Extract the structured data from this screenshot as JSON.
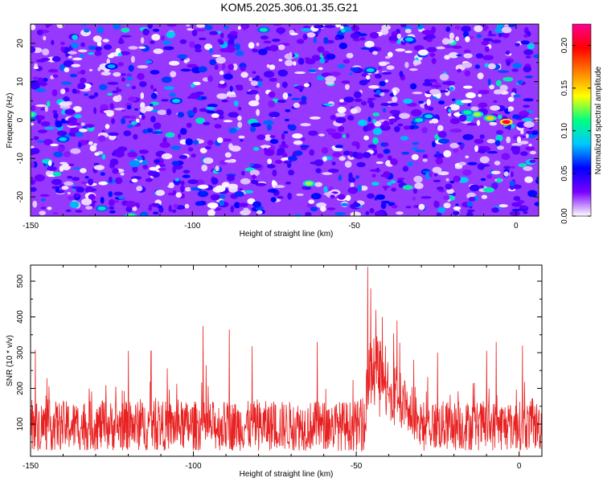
{
  "title": "KOM5.2025.306.01.35.G21",
  "chart_data": [
    {
      "type": "heatmap",
      "title": "KOM5.2025.306.01.35.G21",
      "xlabel": "Height of straight line (km)",
      "ylabel": "Frequency (Hz)",
      "xlim": [
        -150,
        7
      ],
      "ylim": [
        -25,
        25
      ],
      "xticks": [
        "-150",
        "-100",
        "-50",
        "0"
      ],
      "xtick_values": [
        -150,
        -100,
        -50,
        0
      ],
      "yticks": [
        "-20",
        "-10",
        "0",
        "10",
        "20"
      ],
      "ytick_values": [
        -20,
        -10,
        0,
        10,
        20
      ],
      "colorbar": {
        "label": "Normalized spectral amplitude",
        "range": [
          0,
          0.225
        ],
        "ticks": [
          "0.00",
          "0.05",
          "0.10",
          "0.15",
          "0.20"
        ],
        "tick_values": [
          0,
          0.05,
          0.1,
          0.15,
          0.2
        ],
        "colors": [
          "#ffffff",
          "#7a00ff",
          "#0000ff",
          "#00c8ff",
          "#00ff80",
          "#ffff00",
          "#ff8000",
          "#ff0000",
          "#ff0090"
        ]
      },
      "background_level": 0.02,
      "features": [
        {
          "x": -150,
          "y": 1.5,
          "value": 0.12
        },
        {
          "x": -3,
          "y": -0.5,
          "value": 0.21
        },
        {
          "x": -8,
          "y": 0.5,
          "value": 0.15
        },
        {
          "x": -12,
          "y": 1.5,
          "value": 0.13
        },
        {
          "x": -15,
          "y": 2,
          "value": 0.11
        },
        {
          "x": -64,
          "y": -16.5,
          "value": 0.13
        },
        {
          "x": -119,
          "y": -25,
          "value": 0.12
        },
        {
          "x": -128,
          "y": -23,
          "value": 0.1
        },
        {
          "x": -78,
          "y": 23.5,
          "value": 0.1
        },
        {
          "x": -45,
          "y": 13,
          "value": 0.09
        },
        {
          "x": -33,
          "y": 21,
          "value": 0.09
        },
        {
          "x": -30,
          "y": 0,
          "value": 0.1
        },
        {
          "x": -27,
          "y": 1,
          "value": 0.09
        },
        {
          "x": -105,
          "y": 5,
          "value": 0.09
        },
        {
          "x": -140,
          "y": -5,
          "value": 0.09
        },
        {
          "x": -125,
          "y": 14,
          "value": 0.08
        }
      ]
    },
    {
      "type": "line",
      "xlabel": "Height of straight line (km)",
      "ylabel": "SNR (10 * v/v)",
      "xlim": [
        -150,
        7
      ],
      "ylim": [
        10,
        545
      ],
      "xticks": [
        "-150",
        "-100",
        "-50",
        "0"
      ],
      "xtick_values": [
        -150,
        -100,
        -50,
        0
      ],
      "yticks": [
        "100",
        "200",
        "300",
        "400",
        "500"
      ],
      "ytick_values": [
        100,
        200,
        300,
        400,
        500
      ],
      "color": "#e82020",
      "baseline_mean": 95,
      "baseline_spread": 70,
      "peaks": [
        {
          "x": -46.5,
          "y": 540
        },
        {
          "x": -45.5,
          "y": 480
        },
        {
          "x": -44,
          "y": 420
        },
        {
          "x": -42,
          "y": 400
        },
        {
          "x": -37.5,
          "y": 390
        },
        {
          "x": -97,
          "y": 375
        },
        {
          "x": -89,
          "y": 365
        },
        {
          "x": -82,
          "y": 318
        },
        {
          "x": -62,
          "y": 330
        },
        {
          "x": -148.5,
          "y": 308
        },
        {
          "x": -120,
          "y": 305
        },
        {
          "x": -113,
          "y": 305
        },
        {
          "x": -7,
          "y": 330
        },
        {
          "x": -10,
          "y": 305
        },
        {
          "x": -25,
          "y": 300
        },
        {
          "x": 1,
          "y": 320
        }
      ]
    }
  ]
}
